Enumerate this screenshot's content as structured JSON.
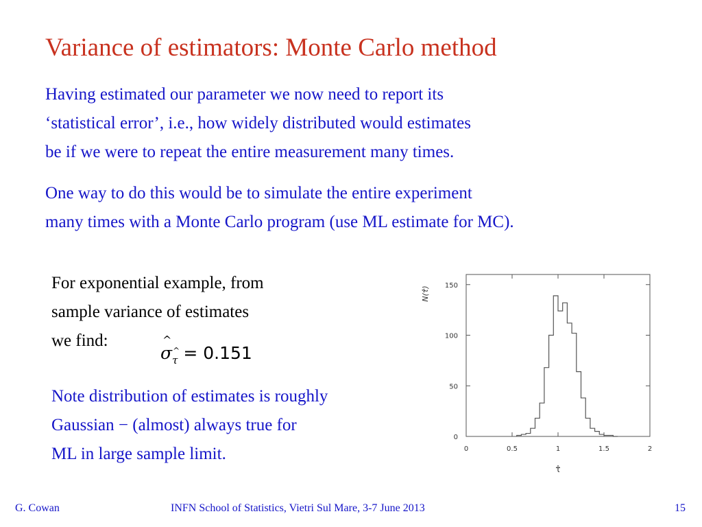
{
  "slide": {
    "title": "Variance of estimators:  Monte Carlo method",
    "para1": [
      "Having estimated our parameter we now need to report its",
      "‘statistical error’, i.e., how widely distributed would estimates",
      "be if we were to repeat the entire measurement many times."
    ],
    "para2": [
      "One way to do this would be to simulate the entire experiment",
      "many times with a Monte Carlo program (use ML estimate for MC)."
    ],
    "para3": [
      "For exponential example, from",
      "sample variance of estimates",
      "we find:"
    ],
    "formula": {
      "symbol": "σ",
      "subscript": "τ",
      "hat": "^",
      "rest": " = 0.151"
    },
    "para4": [
      "Note distribution of estimates is roughly",
      "Gaussian − (almost) always true for",
      "ML in large sample limit."
    ]
  },
  "footer": {
    "author": "G. Cowan",
    "event": "INFN School of Statistics, Vietri Sul Mare, 3-7 June 2013",
    "page": "15"
  },
  "colors": {
    "title": "#c8321f",
    "text_blue": "#1515c8",
    "text_black": "#000000",
    "plot_line": "#555555"
  },
  "chart_data": {
    "type": "histogram",
    "xlabel": "τ̂",
    "ylabel": "N(τ̂)",
    "xlim": [
      0,
      2
    ],
    "ylim": [
      0,
      160
    ],
    "xticks": [
      0,
      0.5,
      1,
      1.5,
      2
    ],
    "xtick_labels": [
      "0",
      "0.5",
      "1",
      "1.5",
      "2"
    ],
    "yticks": [
      0,
      50,
      100,
      150
    ],
    "ytick_labels": [
      "0",
      "50",
      "100",
      "150"
    ],
    "grid": false,
    "bin_width": 0.05,
    "bins_start": [
      0.55,
      0.6,
      0.65,
      0.7,
      0.75,
      0.8,
      0.85,
      0.9,
      0.95,
      1.0,
      1.05,
      1.1,
      1.15,
      1.2,
      1.25,
      1.3,
      1.35,
      1.4,
      1.45,
      1.5,
      1.55,
      1.6
    ],
    "counts": [
      1,
      2,
      3,
      8,
      18,
      33,
      68,
      100,
      139,
      124,
      132,
      112,
      102,
      64,
      38,
      18,
      8,
      5,
      2,
      1,
      1,
      0
    ]
  }
}
